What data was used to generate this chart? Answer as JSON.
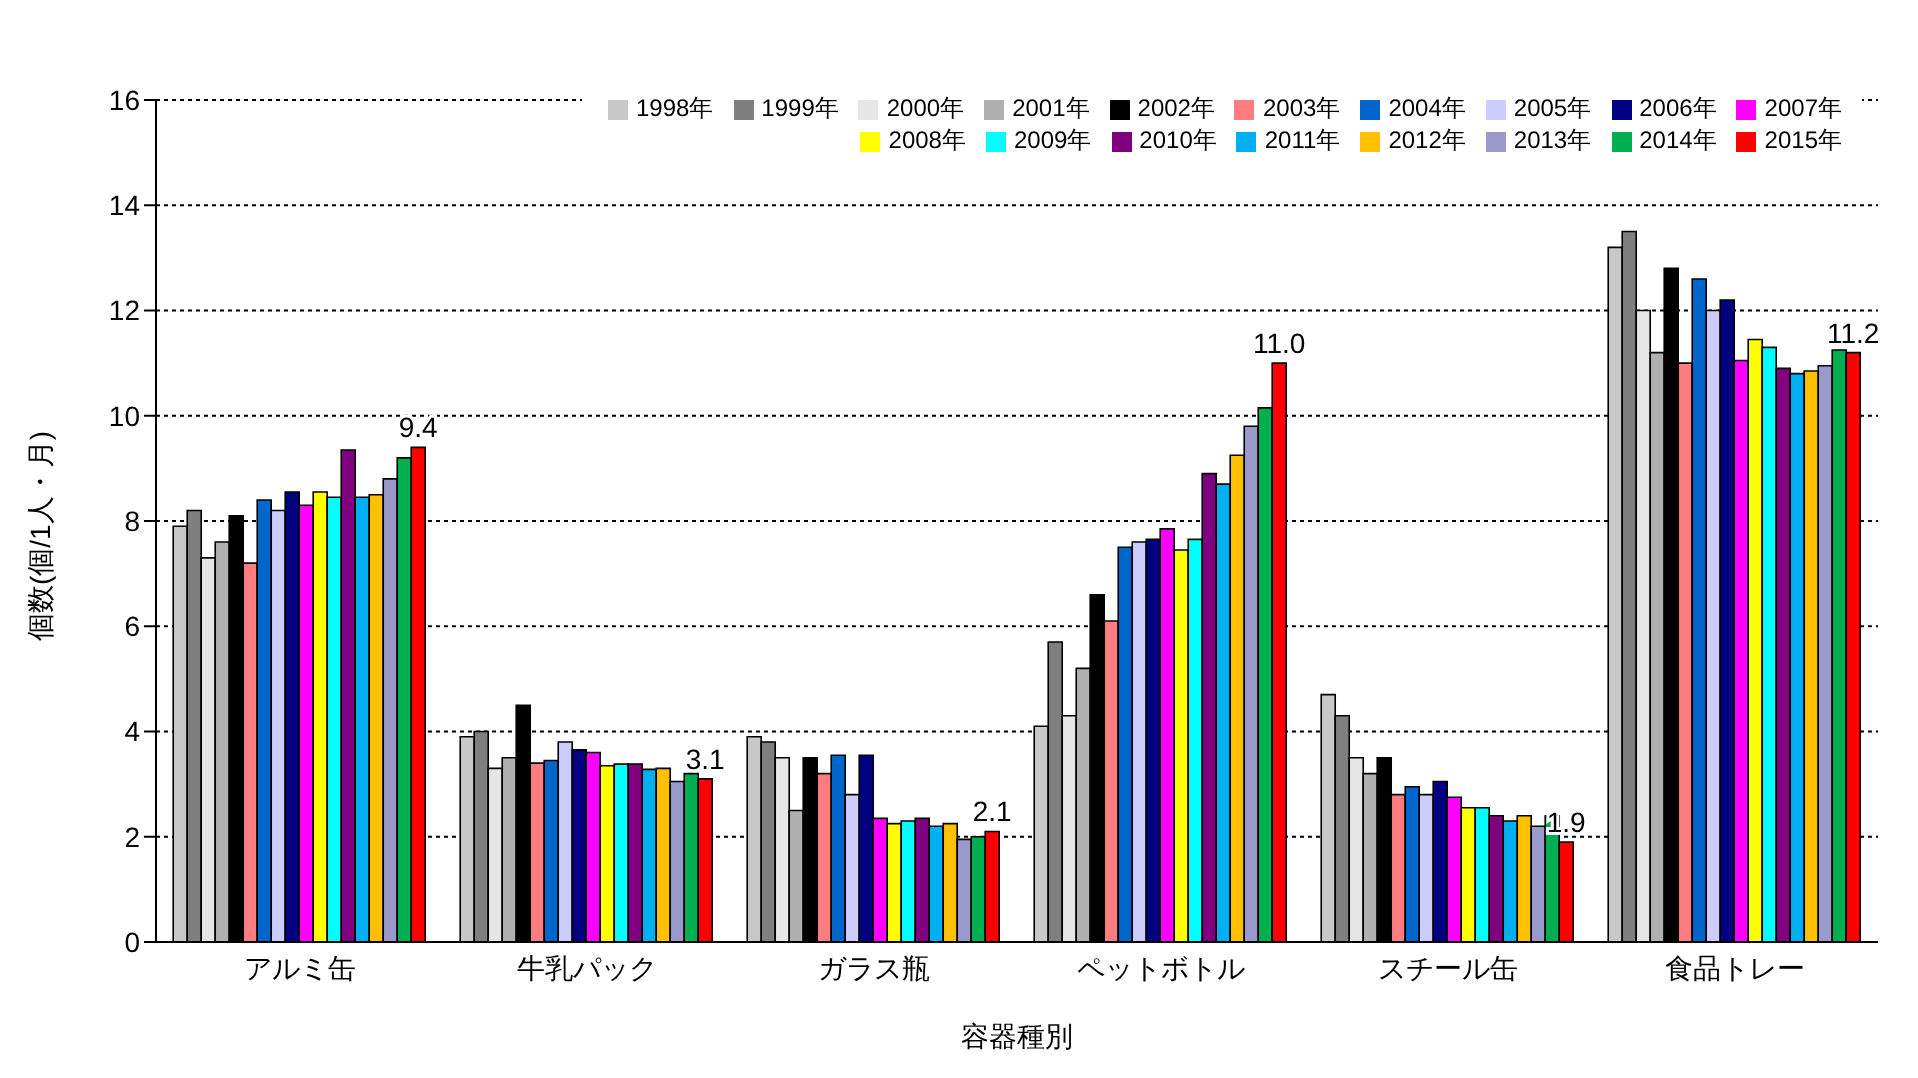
{
  "chart_data": {
    "type": "bar",
    "xlabel": "容器種別",
    "ylabel": "個数(個/1人・月)",
    "categories": [
      "アルミ缶",
      "牛乳パック",
      "ガラス瓶",
      "ペットボトル",
      "スチール缶",
      "食品トレー"
    ],
    "ylim": [
      0,
      16
    ],
    "yticks": [
      0,
      2,
      4,
      6,
      8,
      10,
      12,
      14,
      16
    ],
    "grid": "y",
    "legend": "top right",
    "series": [
      {
        "name": "1998年",
        "color": "#c8c8c8",
        "values": [
          7.9,
          3.9,
          3.9,
          4.1,
          4.7,
          13.2
        ]
      },
      {
        "name": "1999年",
        "color": "#7f7f7f",
        "values": [
          8.2,
          4.0,
          3.8,
          5.7,
          4.3,
          13.5
        ]
      },
      {
        "name": "2000年",
        "color": "#e6e6e6",
        "values": [
          7.3,
          3.3,
          3.5,
          4.3,
          3.5,
          12.0
        ]
      },
      {
        "name": "2001年",
        "color": "#b0b0b0",
        "values": [
          7.6,
          3.5,
          2.5,
          5.2,
          3.2,
          11.2
        ]
      },
      {
        "name": "2002年",
        "color": "#000000",
        "values": [
          8.1,
          4.5,
          3.5,
          6.6,
          3.5,
          12.8
        ]
      },
      {
        "name": "2003年",
        "color": "#ff7c80",
        "values": [
          7.2,
          3.4,
          3.2,
          6.1,
          2.8,
          11.0
        ]
      },
      {
        "name": "2004年",
        "color": "#0066cc",
        "values": [
          8.4,
          3.45,
          3.55,
          7.5,
          2.95,
          12.6
        ]
      },
      {
        "name": "2005年",
        "color": "#ccccff",
        "values": [
          8.2,
          3.8,
          2.8,
          7.6,
          2.8,
          12.0
        ]
      },
      {
        "name": "2006年",
        "color": "#000080",
        "values": [
          8.55,
          3.65,
          3.55,
          7.65,
          3.05,
          12.2
        ]
      },
      {
        "name": "2007年",
        "color": "#ff00ff",
        "values": [
          8.3,
          3.6,
          2.35,
          7.85,
          2.75,
          11.05
        ]
      },
      {
        "name": "2008年",
        "color": "#ffff00",
        "values": [
          8.55,
          3.35,
          2.25,
          7.45,
          2.55,
          11.45
        ]
      },
      {
        "name": "2009年",
        "color": "#00ffff",
        "values": [
          8.45,
          3.38,
          2.3,
          7.65,
          2.55,
          11.3
        ]
      },
      {
        "name": "2010年",
        "color": "#800080",
        "values": [
          9.35,
          3.38,
          2.35,
          8.9,
          2.4,
          10.9
        ]
      },
      {
        "name": "2011年",
        "color": "#00b0f0",
        "values": [
          8.45,
          3.28,
          2.2,
          8.7,
          2.3,
          10.8
        ]
      },
      {
        "name": "2012年",
        "color": "#ffc000",
        "values": [
          8.5,
          3.3,
          2.25,
          9.25,
          2.4,
          10.85
        ]
      },
      {
        "name": "2013年",
        "color": "#9999cc",
        "values": [
          8.8,
          3.05,
          1.95,
          9.8,
          2.2,
          10.95
        ]
      },
      {
        "name": "2014年",
        "color": "#00b050",
        "values": [
          9.2,
          3.2,
          2.0,
          10.15,
          2.4,
          11.25
        ]
      },
      {
        "name": "2015年",
        "color": "#ff0000",
        "values": [
          9.4,
          3.1,
          2.1,
          11.0,
          1.9,
          11.2
        ],
        "value_labels": [
          "9.4",
          "3.1",
          "2.1",
          "11.0",
          "1.9",
          "11.2"
        ]
      }
    ]
  }
}
